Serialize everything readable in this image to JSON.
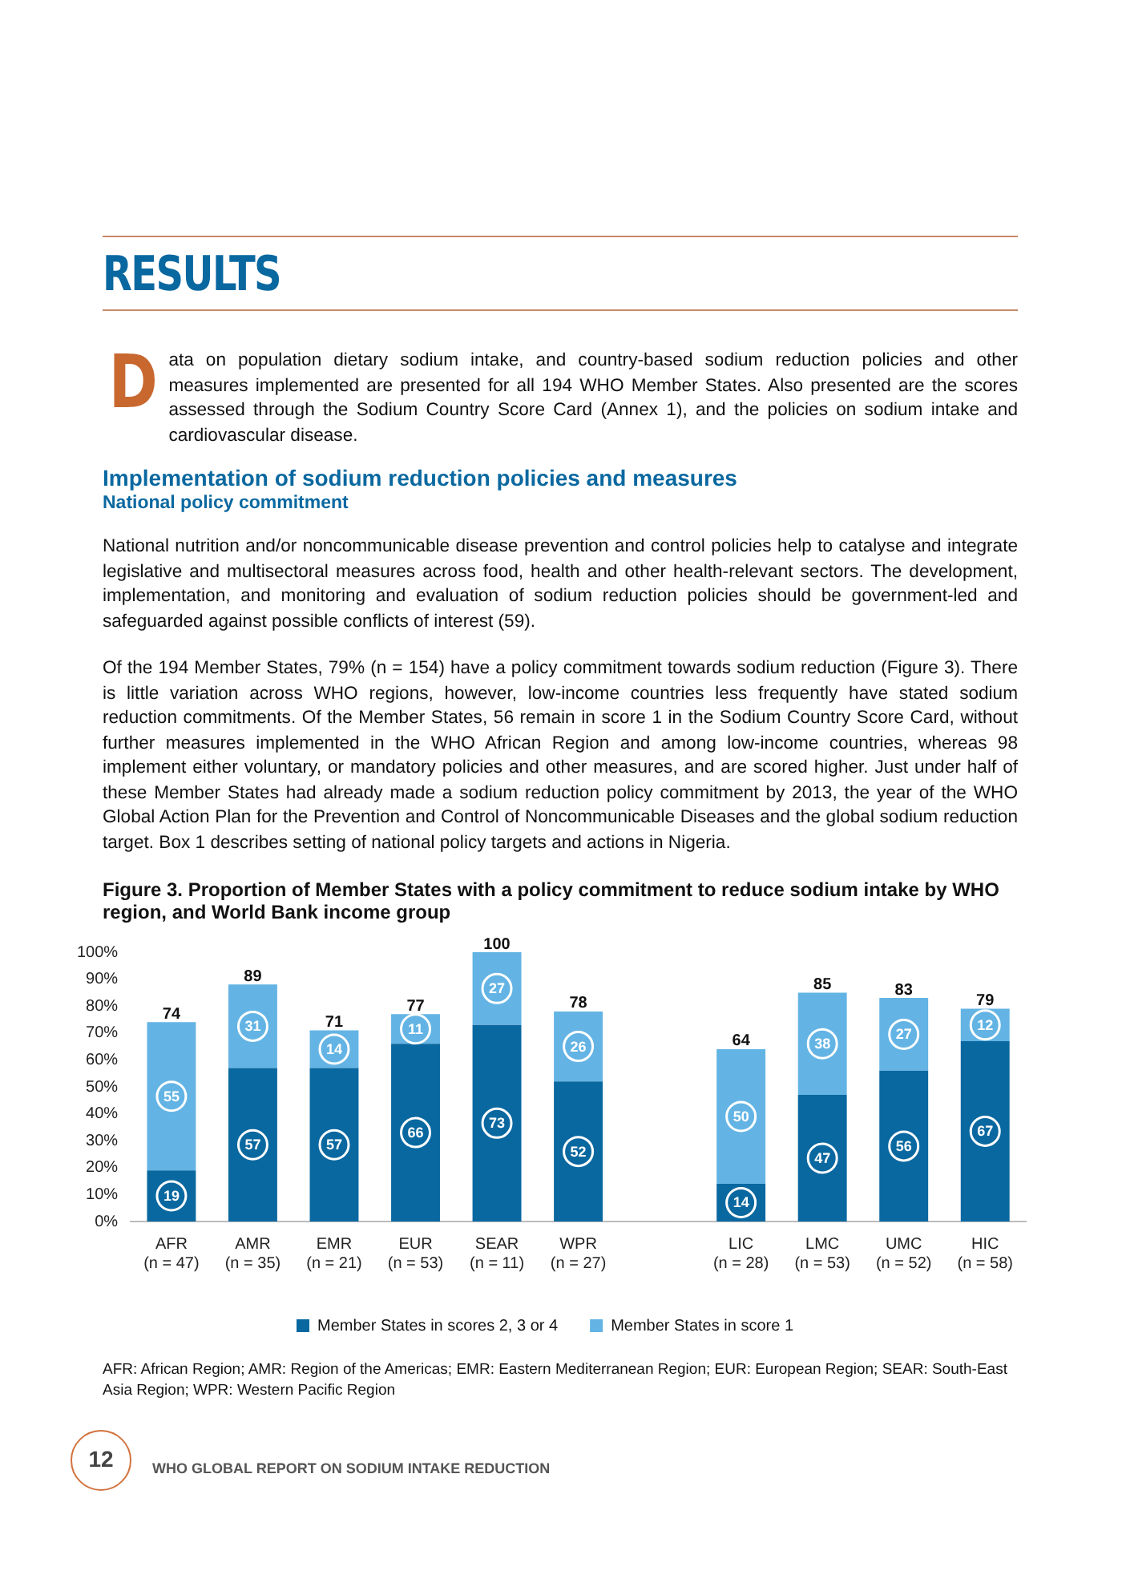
{
  "chart_data": {
    "type": "bar",
    "stacked": true,
    "title": "Figure 3. Proportion of Member States with a policy commitment to reduce sodium intake by WHO region, and World Bank income group",
    "categories": [
      "AFR\n(n = 47)",
      "AMR\n(n = 35)",
      "EMR\n(n = 21)",
      "EUR\n(n = 53)",
      "SEAR\n(n = 11)",
      "WPR\n(n = 27)",
      null,
      "LIC\n(n = 28)",
      "LMC\n(n = 53)",
      "UMC\n(n = 52)",
      "HIC\n(n = 58)"
    ],
    "series": [
      {
        "name": "Member States in scores 2, 3 or 4",
        "color": "#0a68a0",
        "values": [
          19,
          57,
          57,
          66,
          73,
          52,
          null,
          14,
          47,
          56,
          67
        ]
      },
      {
        "name": "Member States in score 1",
        "color": "#63b4e4",
        "values": [
          55,
          31,
          14,
          11,
          27,
          26,
          null,
          50,
          38,
          27,
          12
        ]
      }
    ],
    "data_labels": true,
    "totals": [
      "74",
      "89",
      "71",
      "77",
      "100",
      "78",
      null,
      "64",
      "85",
      "83",
      "79"
    ],
    "ylim": [
      0,
      100
    ],
    "yticks": [
      {
        "value": 0,
        "label": "0%"
      },
      {
        "value": 10,
        "label": "10%"
      },
      {
        "value": 20,
        "label": "20%"
      },
      {
        "value": 30,
        "label": "30%"
      },
      {
        "value": 40,
        "label": "40%"
      },
      {
        "value": 50,
        "label": "50%"
      },
      {
        "value": 60,
        "label": "60%"
      },
      {
        "value": 70,
        "label": "70%"
      },
      {
        "value": 80,
        "label": "80%"
      },
      {
        "value": 90,
        "label": "90%"
      },
      {
        "value": 100,
        "label": "100%"
      }
    ],
    "grid": false,
    "legend": "bottom",
    "annotations": [
      "RESULTS",
      "Data on population dietary sodium intake, and country-based sodium reduction policies and other measures implemented are presented for all 194 WHO Member States. Also presented are the scores assessed through the Sodium Country Score Card (Annex 1), and the policies on sodium intake and cardiovascular disease.",
      "Implementation of sodium reduction policies and measures",
      "National policy commitment",
      "National nutrition and/or noncommunicable disease prevention and control policies help to catalyse and integrate legislative and multisectoral measures across food, health and other health-relevant sectors. The development, implementation, and monitoring and evaluation of sodium reduction policies should be government-led and safeguarded against possible conflicts of interest (59).",
      "Of the 194 Member States, 79% (n = 154) have a policy commitment towards sodium reduction (Figure 3). There is little variation across WHO regions, however, low-income countries less frequently have stated sodium reduction commitments. Of the Member States, 56 remain in score 1 in the Sodium Country Score Card, without further measures implemented in the WHO African Region and among low-income countries, whereas 98 implement either voluntary, or mandatory policies and other measures, and are scored higher. Just under half of these Member States had already made a sodium reduction policy commitment by 2013, the year of the WHO Global Action Plan for the Prevention and Control of Noncommunicable Diseases and the global sodium reduction target. Box 1 describes setting of national policy targets and actions in Nigeria.",
      "AFR: African Region; AMR: Region of the Americas; EMR: Eastern Mediterranean Region; EUR: European Region; SEAR: South-East Asia Region; WPR: Western Pacific Region",
      "12",
      "WHO GLOBAL REPORT ON SODIUM INTAKE REDUCTION"
    ]
  }
}
